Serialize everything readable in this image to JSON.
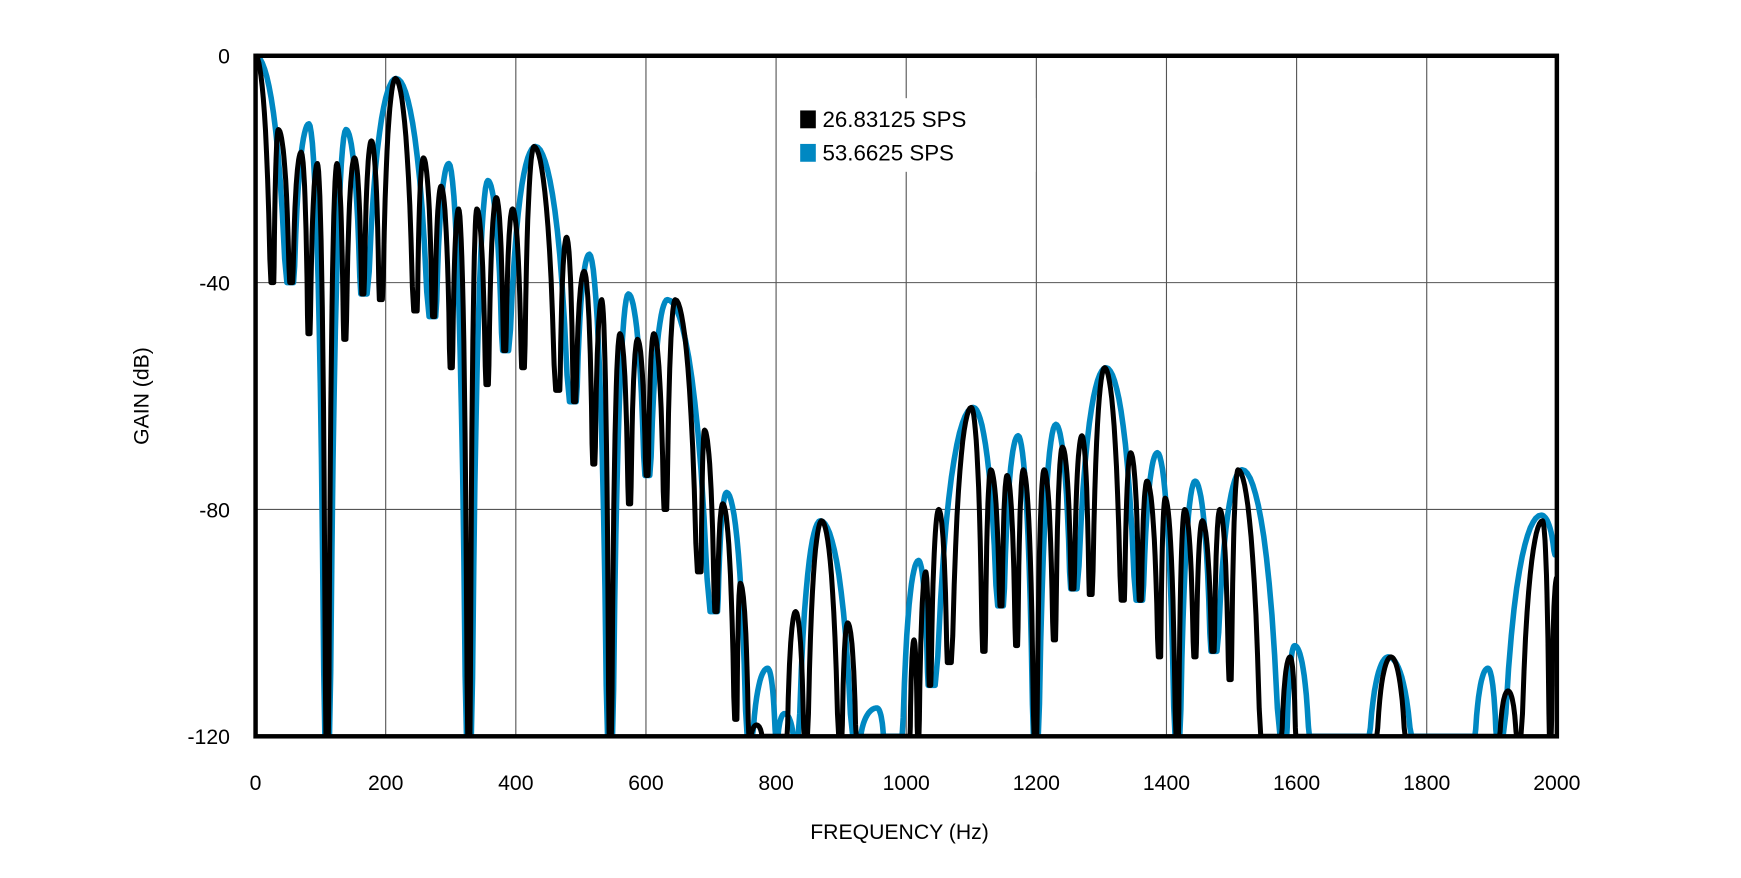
{
  "chart_data": {
    "type": "line",
    "title": "",
    "xlabel": "FREQUENCY (Hz)",
    "ylabel": "GAIN (dB)",
    "xlim": [
      0,
      2000
    ],
    "ylim": [
      -120,
      0
    ],
    "xticks": [
      "0",
      "200",
      "400",
      "600",
      "800",
      "1000",
      "1200",
      "1400",
      "1600",
      "1800",
      "2000"
    ],
    "yticks": [
      "0",
      "-40",
      "-80",
      "-120"
    ],
    "grid": true,
    "legend_position": "top-center",
    "series": [
      {
        "name": "26.83125 SPS",
        "color": "#000000",
        "points": [
          [
            0,
            0
          ],
          [
            27,
            -40
          ],
          [
            35,
            -13
          ],
          [
            55,
            -40
          ],
          [
            70,
            -17
          ],
          [
            82,
            -49
          ],
          [
            95,
            -19
          ],
          [
            110,
            -120
          ],
          [
            125,
            -19
          ],
          [
            137,
            -50
          ],
          [
            152,
            -18
          ],
          [
            165,
            -42
          ],
          [
            178,
            -15
          ],
          [
            192,
            -43
          ],
          [
            215,
            -4
          ],
          [
            247,
            -45
          ],
          [
            258,
            -18
          ],
          [
            274,
            -46
          ],
          [
            285,
            -23
          ],
          [
            301,
            -55
          ],
          [
            312,
            -27
          ],
          [
            328,
            -120
          ],
          [
            340,
            -27
          ],
          [
            356,
            -58
          ],
          [
            370,
            -25
          ],
          [
            383,
            -52
          ],
          [
            395,
            -27
          ],
          [
            411,
            -55
          ],
          [
            428,
            -16
          ],
          [
            466,
            -59
          ],
          [
            478,
            -32
          ],
          [
            490,
            -61
          ],
          [
            505,
            -38
          ],
          [
            520,
            -72
          ],
          [
            532,
            -43
          ],
          [
            545,
            -120
          ],
          [
            560,
            -49
          ],
          [
            575,
            -79
          ],
          [
            587,
            -50
          ],
          [
            602,
            -74
          ],
          [
            612,
            -49
          ],
          [
            630,
            -80
          ],
          [
            645,
            -43
          ],
          [
            684,
            -91
          ],
          [
            690,
            -66
          ],
          [
            708,
            -98
          ],
          [
            718,
            -79
          ],
          [
            739,
            -117
          ],
          [
            745,
            -93
          ],
          [
            760,
            -120
          ],
          [
            770,
            -118
          ],
          [
            780,
            -120
          ],
          [
            815,
            -120
          ],
          [
            830,
            -98
          ],
          [
            845,
            -120
          ],
          [
            870,
            -82
          ],
          [
            900,
            -120
          ],
          [
            910,
            -100
          ],
          [
            925,
            -120
          ],
          [
            1005,
            -120
          ],
          [
            1012,
            -103
          ],
          [
            1018,
            -120
          ],
          [
            1030,
            -91
          ],
          [
            1036,
            -111
          ],
          [
            1050,
            -80
          ],
          [
            1065,
            -107
          ],
          [
            1100,
            -62
          ],
          [
            1120,
            -105
          ],
          [
            1130,
            -73
          ],
          [
            1146,
            -97
          ],
          [
            1155,
            -74
          ],
          [
            1170,
            -104
          ],
          [
            1180,
            -73
          ],
          [
            1199,
            -120
          ],
          [
            1212,
            -73
          ],
          [
            1228,
            -103
          ],
          [
            1240,
            -69
          ],
          [
            1256,
            -94
          ],
          [
            1270,
            -67
          ],
          [
            1283,
            -95
          ],
          [
            1305,
            -55
          ],
          [
            1334,
            -96
          ],
          [
            1345,
            -70
          ],
          [
            1360,
            -96
          ],
          [
            1370,
            -75
          ],
          [
            1390,
            -106
          ],
          [
            1398,
            -78
          ],
          [
            1417,
            -120
          ],
          [
            1428,
            -80
          ],
          [
            1444,
            -106
          ],
          [
            1455,
            -82
          ],
          [
            1472,
            -105
          ],
          [
            1482,
            -80
          ],
          [
            1498,
            -110
          ],
          [
            1510,
            -73
          ],
          [
            1550,
            -120
          ],
          [
            1575,
            -120
          ],
          [
            1590,
            -106
          ],
          [
            1600,
            -120
          ],
          [
            1720,
            -120
          ],
          [
            1745,
            -106
          ],
          [
            1770,
            -120
          ],
          [
            1910,
            -120
          ],
          [
            1925,
            -112
          ],
          [
            1940,
            -120
          ],
          [
            1978,
            -82
          ],
          [
            1990,
            -120
          ],
          [
            2000,
            -92
          ]
        ]
      },
      {
        "name": "53.6625 SPS",
        "color": "#0088c2",
        "points": [
          [
            0,
            0
          ],
          [
            55,
            -40
          ],
          [
            82,
            -12
          ],
          [
            110,
            -120
          ],
          [
            139,
            -13
          ],
          [
            165,
            -42
          ],
          [
            216,
            -4
          ],
          [
            274,
            -46
          ],
          [
            297,
            -19
          ],
          [
            328,
            -120
          ],
          [
            357,
            -22
          ],
          [
            383,
            -52
          ],
          [
            430,
            -16
          ],
          [
            490,
            -61
          ],
          [
            513,
            -35
          ],
          [
            545,
            -120
          ],
          [
            573,
            -42
          ],
          [
            602,
            -74
          ],
          [
            633,
            -43
          ],
          [
            708,
            -98
          ],
          [
            724,
            -77
          ],
          [
            760,
            -120
          ],
          [
            787,
            -108
          ],
          [
            801,
            -120
          ],
          [
            813,
            -116
          ],
          [
            829,
            -120
          ],
          [
            868,
            -82
          ],
          [
            925,
            -120
          ],
          [
            955,
            -115
          ],
          [
            967,
            -120
          ],
          [
            990,
            -120
          ],
          [
            1019,
            -89
          ],
          [
            1036,
            -111
          ],
          [
            1103,
            -62
          ],
          [
            1146,
            -97
          ],
          [
            1172,
            -67
          ],
          [
            1199,
            -120
          ],
          [
            1230,
            -65
          ],
          [
            1256,
            -94
          ],
          [
            1307,
            -55
          ],
          [
            1360,
            -96
          ],
          [
            1386,
            -70
          ],
          [
            1417,
            -120
          ],
          [
            1444,
            -75
          ],
          [
            1472,
            -105
          ],
          [
            1516,
            -73
          ],
          [
            1583,
            -120
          ],
          [
            1597,
            -104
          ],
          [
            1623,
            -120
          ],
          [
            1707,
            -120
          ],
          [
            1741,
            -106
          ],
          [
            1782,
            -120
          ],
          [
            1871,
            -120
          ],
          [
            1894,
            -108
          ],
          [
            1909,
            -120
          ],
          [
            1976,
            -81
          ],
          [
            2000,
            -88
          ]
        ]
      }
    ]
  }
}
